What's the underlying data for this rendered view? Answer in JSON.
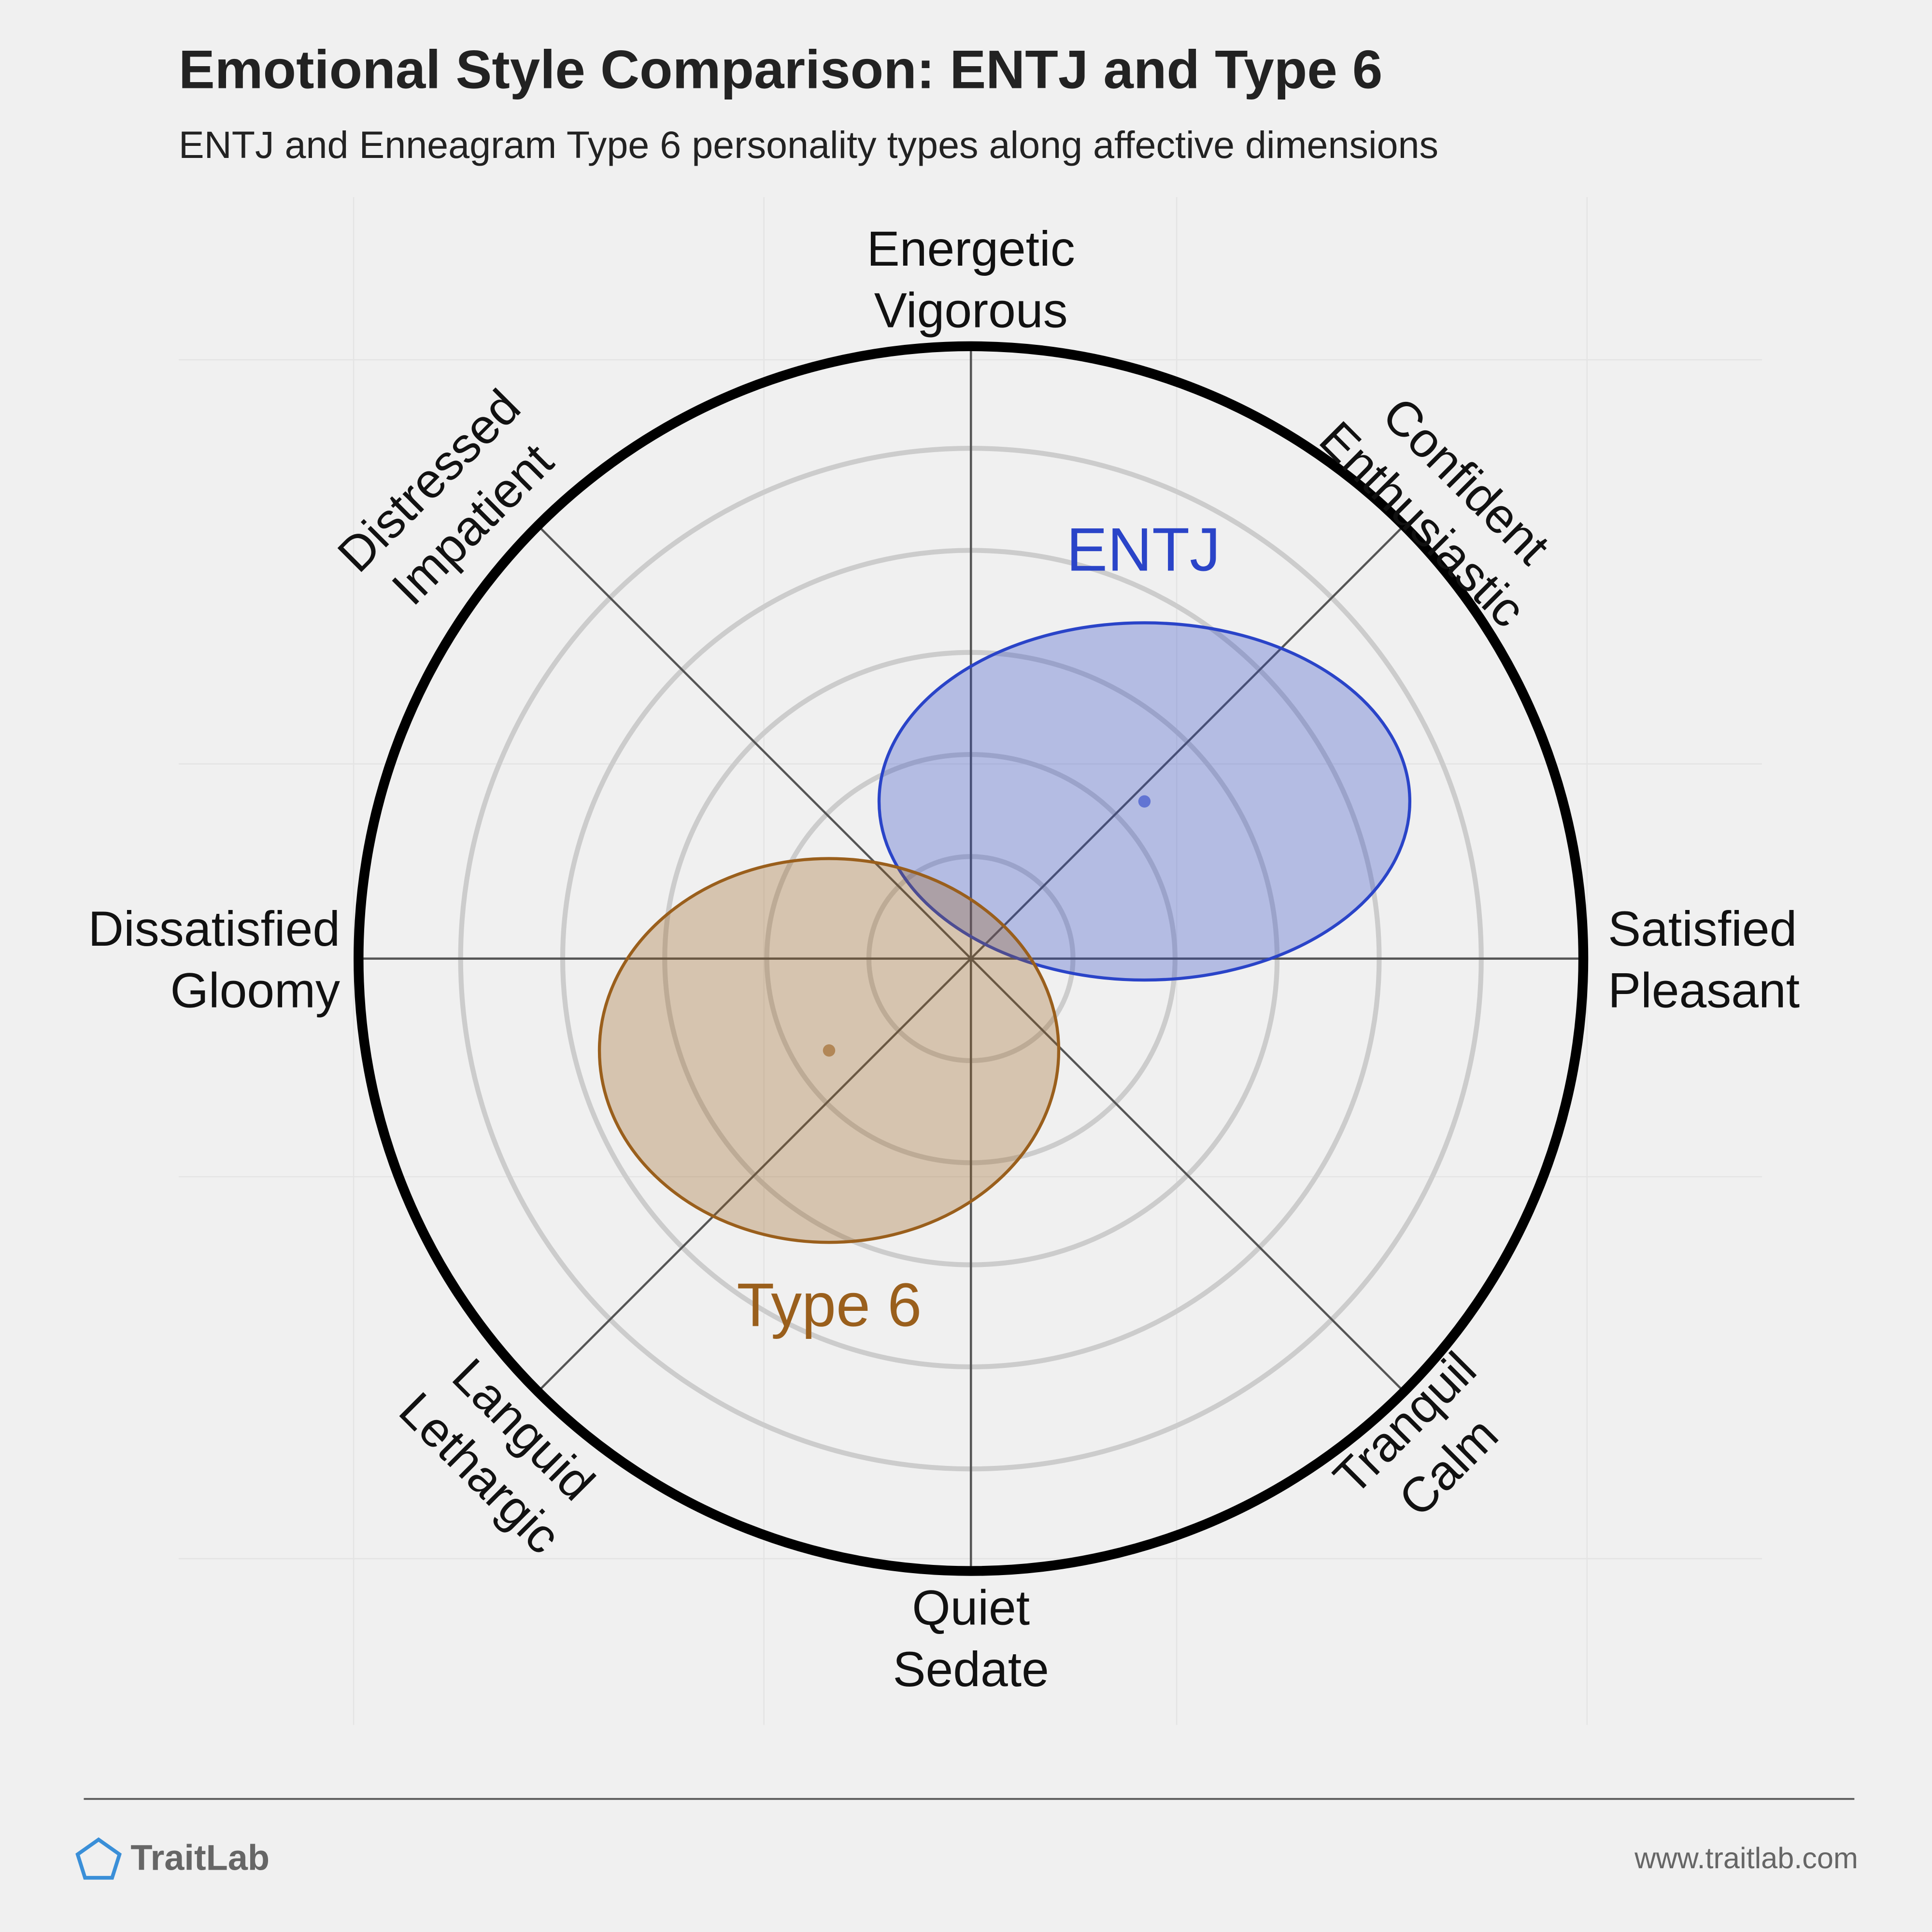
{
  "chart_data": {
    "type": "ellipse",
    "title": "Emotional Style Comparison: ENTJ and Type 6",
    "subtitle": "ENTJ and Enneagram Type 6 personality types along affective dimensions",
    "axis_labels": [
      [
        "Energetic",
        "Vigorous"
      ],
      [
        "Confident",
        "Enthusiastic"
      ],
      [
        "Satisfied",
        "Pleasant"
      ],
      [
        "Tranquil",
        "Calm"
      ],
      [
        "Quiet",
        "Sedate"
      ],
      [
        "Languid",
        "Lethargic"
      ],
      [
        "Dissatisfied",
        "Gloomy"
      ],
      [
        "Distressed",
        "Impatient"
      ]
    ],
    "xlim": [
      -6,
      6
    ],
    "ylim": [
      -6,
      6
    ],
    "rings": [
      1,
      2,
      3,
      4,
      5
    ],
    "series": [
      {
        "name": "ENTJ",
        "color": "#2a44c8",
        "x": 1.7,
        "y": 1.54,
        "rx": 2.6,
        "ry": 1.75
      },
      {
        "name": "Type 6",
        "color": "#9a5f1c",
        "x": -1.39,
        "y": -0.9,
        "rx": 2.25,
        "ry": 1.88
      }
    ]
  },
  "footer": {
    "brand": "TraitLab",
    "url": "www.traitlab.com"
  }
}
